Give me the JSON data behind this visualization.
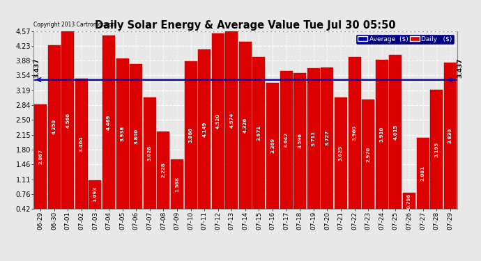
{
  "title": "Daily Solar Energy & Average Value Tue Jul 30 05:50",
  "copyright": "Copyright 2013 Cartronics.com",
  "bar_color": "#dd0000",
  "avg_line_color": "#0000bb",
  "background_color": "#e8e8e8",
  "grid_color": "#ffffff",
  "avg_value": 3.437,
  "categories": [
    "06-29",
    "06-30",
    "07-01",
    "07-02",
    "07-03",
    "07-04",
    "07-05",
    "07-06",
    "07-07",
    "07-08",
    "07-09",
    "07-10",
    "07-11",
    "07-12",
    "07-13",
    "07-14",
    "07-15",
    "07-16",
    "07-17",
    "07-18",
    "07-19",
    "07-20",
    "07-21",
    "07-22",
    "07-23",
    "07-24",
    "07-25",
    "07-26",
    "07-27",
    "07-28",
    "07-29"
  ],
  "values": [
    2.867,
    4.25,
    4.566,
    3.464,
    1.093,
    4.469,
    3.938,
    3.8,
    3.028,
    2.228,
    1.568,
    3.866,
    4.149,
    4.52,
    4.574,
    4.326,
    3.971,
    3.369,
    3.642,
    3.596,
    3.711,
    3.727,
    3.025,
    3.96,
    2.97,
    3.91,
    4.015,
    0.796,
    2.081,
    3.195,
    3.83
  ],
  "ylim_min": 0.42,
  "ylim_max": 4.57,
  "yticks": [
    0.42,
    0.76,
    1.11,
    1.46,
    1.8,
    2.15,
    2.5,
    2.84,
    3.19,
    3.54,
    3.88,
    4.23,
    4.57
  ],
  "legend_avg_label": "Average  ($)",
  "legend_daily_label": "Daily   ($)",
  "avg_label": "3.437"
}
